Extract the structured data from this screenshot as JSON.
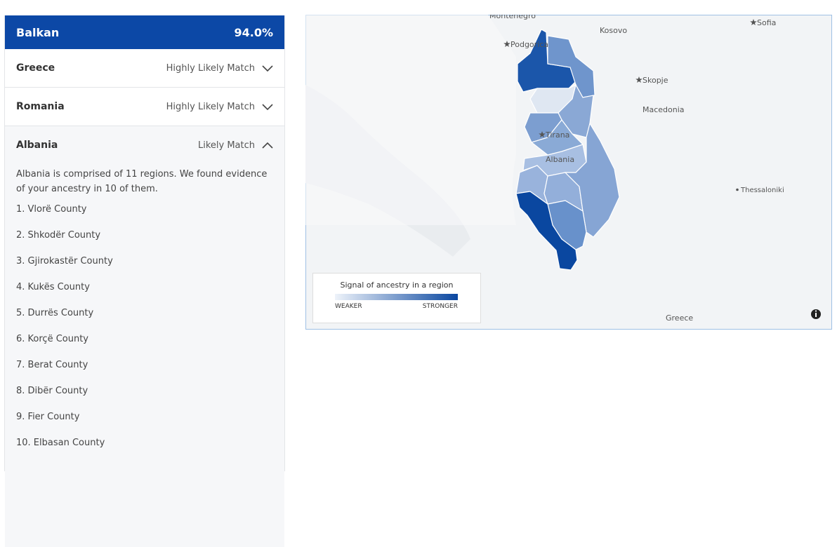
{
  "header": {
    "title": "Balkan",
    "value": "94.0%"
  },
  "items": [
    {
      "name": "Greece",
      "status": "Highly Likely Match"
    },
    {
      "name": "Romania",
      "status": "Highly Likely Match"
    },
    {
      "name": "Albania",
      "status": "Likely Match"
    }
  ],
  "detail": {
    "text": "Albania is comprised of 11 regions. We found evidence of your ancestry in 10 of them.",
    "regions": [
      "1. Vlorë County",
      "2. Shkodër County",
      "3. Gjirokastër County",
      "4. Kukës County",
      "5. Durrës County",
      "6. Korçë County",
      "7. Berat County",
      "8. Dibër County",
      "9. Fier County",
      "10. Elbasan County"
    ]
  },
  "map": {
    "labels": [
      "Montenegro",
      "Kosovo",
      "Sofia",
      "Podgorica",
      "Skopje",
      "Macedonia",
      "Tirana",
      "Albania",
      "Thessaloniki",
      "Greece"
    ],
    "legend": {
      "title": "Signal of ancestry in a region",
      "low": "WEAKER",
      "high": "STRONGER"
    }
  }
}
